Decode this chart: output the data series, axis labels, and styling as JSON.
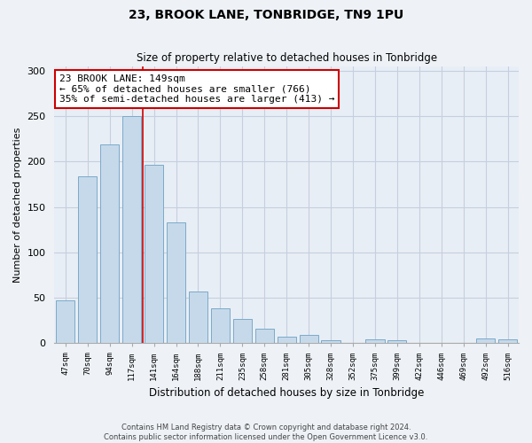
{
  "title": "23, BROOK LANE, TONBRIDGE, TN9 1PU",
  "subtitle": "Size of property relative to detached houses in Tonbridge",
  "xlabel": "Distribution of detached houses by size in Tonbridge",
  "ylabel": "Number of detached properties",
  "bar_labels": [
    "47sqm",
    "70sqm",
    "94sqm",
    "117sqm",
    "141sqm",
    "164sqm",
    "188sqm",
    "211sqm",
    "235sqm",
    "258sqm",
    "281sqm",
    "305sqm",
    "328sqm",
    "352sqm",
    "375sqm",
    "399sqm",
    "422sqm",
    "446sqm",
    "469sqm",
    "492sqm",
    "516sqm"
  ],
  "bar_values": [
    47,
    184,
    219,
    250,
    196,
    133,
    57,
    38,
    27,
    16,
    7,
    9,
    3,
    0,
    4,
    3,
    0,
    0,
    0,
    5,
    4
  ],
  "bar_color": "#c6d9ea",
  "bar_edge_color": "#7baac9",
  "red_line_x": 3.5,
  "annotation_title": "23 BROOK LANE: 149sqm",
  "annotation_line1": "← 65% of detached houses are smaller (766)",
  "annotation_line2": "35% of semi-detached houses are larger (413) →",
  "annotation_box_color": "#ffffff",
  "annotation_box_edge_color": "#cc0000",
  "red_line_color": "#cc0000",
  "ylim": [
    0,
    305
  ],
  "yticks": [
    0,
    50,
    100,
    150,
    200,
    250,
    300
  ],
  "footer_line1": "Contains HM Land Registry data © Crown copyright and database right 2024.",
  "footer_line2": "Contains public sector information licensed under the Open Government Licence v3.0.",
  "background_color": "#eef2f7",
  "plot_background_color": "#e8eef5",
  "grid_color": "#c5cfe0"
}
